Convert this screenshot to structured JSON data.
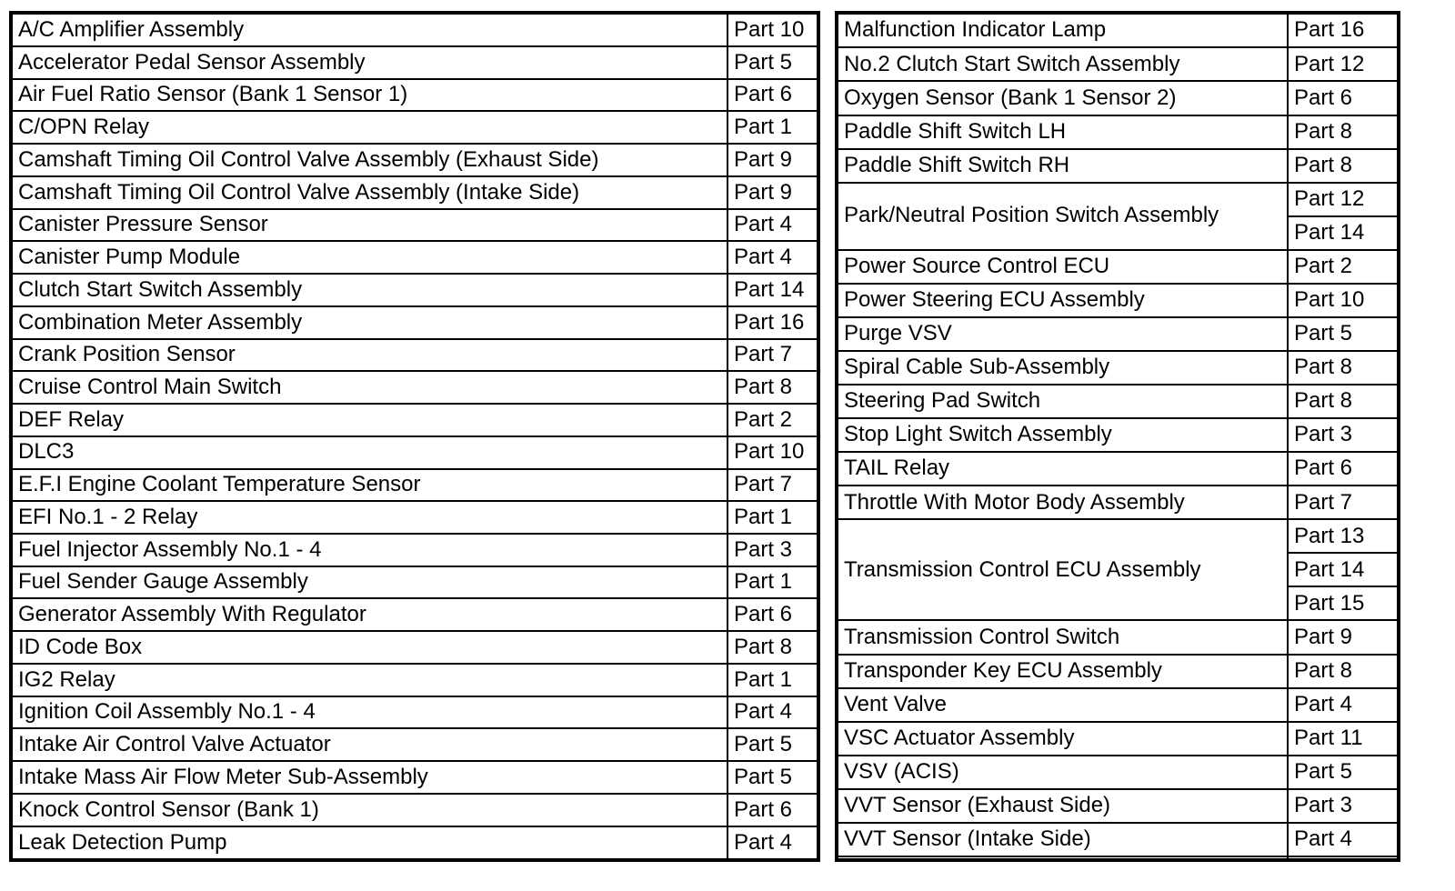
{
  "page": {
    "background_color": "#ffffff",
    "text_color": "#000000",
    "border_color": "#000000"
  },
  "tables": [
    {
      "name": "left",
      "columns": [
        "component",
        "part"
      ],
      "rows": [
        {
          "label": "A/C Amplifier Assembly",
          "parts": [
            "Part 10"
          ]
        },
        {
          "label": "Accelerator Pedal Sensor Assembly",
          "parts": [
            "Part 5"
          ]
        },
        {
          "label": "Air Fuel Ratio Sensor (Bank 1 Sensor 1)",
          "parts": [
            "Part 6"
          ]
        },
        {
          "label": "C/OPN Relay",
          "parts": [
            "Part 1"
          ]
        },
        {
          "label": "Camshaft Timing Oil Control Valve Assembly (Exhaust Side)",
          "parts": [
            "Part 9"
          ]
        },
        {
          "label": "Camshaft Timing Oil Control Valve Assembly (Intake Side)",
          "parts": [
            "Part 9"
          ]
        },
        {
          "label": "Canister Pressure Sensor",
          "parts": [
            "Part 4"
          ]
        },
        {
          "label": "Canister Pump Module",
          "parts": [
            "Part 4"
          ]
        },
        {
          "label": "Clutch Start Switch Assembly",
          "parts": [
            "Part 14"
          ]
        },
        {
          "label": "Combination Meter Assembly",
          "parts": [
            "Part 16"
          ]
        },
        {
          "label": "Crank Position Sensor",
          "parts": [
            "Part 7"
          ]
        },
        {
          "label": "Cruise Control Main Switch",
          "parts": [
            "Part 8"
          ]
        },
        {
          "label": "DEF Relay",
          "parts": [
            "Part 2"
          ]
        },
        {
          "label": "DLC3",
          "parts": [
            "Part 10"
          ]
        },
        {
          "label": "E.F.I Engine Coolant Temperature Sensor",
          "parts": [
            "Part 7"
          ]
        },
        {
          "label": "EFI No.1 - 2 Relay",
          "parts": [
            "Part 1"
          ]
        },
        {
          "label": "Fuel Injector Assembly No.1 - 4",
          "parts": [
            "Part 3"
          ]
        },
        {
          "label": "Fuel Sender Gauge Assembly",
          "parts": [
            "Part 1"
          ]
        },
        {
          "label": "Generator Assembly With Regulator",
          "parts": [
            "Part 6"
          ]
        },
        {
          "label": "ID Code Box",
          "parts": [
            "Part 8"
          ]
        },
        {
          "label": "IG2 Relay",
          "parts": [
            "Part 1"
          ]
        },
        {
          "label": "Ignition Coil Assembly No.1 - 4",
          "parts": [
            "Part 4"
          ]
        },
        {
          "label": "Intake Air Control Valve Actuator",
          "parts": [
            "Part 5"
          ]
        },
        {
          "label": "Intake Mass Air Flow Meter Sub-Assembly",
          "parts": [
            "Part 5"
          ]
        },
        {
          "label": "Knock Control Sensor (Bank 1)",
          "parts": [
            "Part 6"
          ]
        },
        {
          "label": "Leak Detection Pump",
          "parts": [
            "Part 4"
          ]
        }
      ]
    },
    {
      "name": "right",
      "columns": [
        "component",
        "part"
      ],
      "rows": [
        {
          "label": "Malfunction Indicator Lamp",
          "parts": [
            "Part 16"
          ]
        },
        {
          "label": "No.2 Clutch Start Switch Assembly",
          "parts": [
            "Part 12"
          ]
        },
        {
          "label": "Oxygen Sensor (Bank 1 Sensor 2)",
          "parts": [
            "Part 6"
          ]
        },
        {
          "label": "Paddle Shift Switch LH",
          "parts": [
            "Part 8"
          ]
        },
        {
          "label": "Paddle Shift Switch RH",
          "parts": [
            "Part 8"
          ]
        },
        {
          "label": "Park/Neutral Position Switch Assembly",
          "parts": [
            "Part 12",
            "Part 14"
          ]
        },
        {
          "label": "Power Source Control ECU",
          "parts": [
            "Part 2"
          ]
        },
        {
          "label": "Power Steering ECU Assembly",
          "parts": [
            "Part 10"
          ]
        },
        {
          "label": "Purge VSV",
          "parts": [
            "Part 5"
          ]
        },
        {
          "label": "Spiral Cable Sub-Assembly",
          "parts": [
            "Part 8"
          ]
        },
        {
          "label": "Steering Pad Switch",
          "parts": [
            "Part 8"
          ]
        },
        {
          "label": "Stop Light Switch Assembly",
          "parts": [
            "Part 3"
          ]
        },
        {
          "label": "TAIL Relay",
          "parts": [
            "Part 6"
          ]
        },
        {
          "label": "Throttle With Motor Body Assembly",
          "parts": [
            "Part 7"
          ]
        },
        {
          "label": "Transmission Control ECU Assembly",
          "parts": [
            "Part 13",
            "Part 14",
            "Part 15"
          ]
        },
        {
          "label": "Transmission Control Switch",
          "parts": [
            "Part 9"
          ]
        },
        {
          "label": "Transponder Key ECU Assembly",
          "parts": [
            "Part 8"
          ]
        },
        {
          "label": "Vent Valve",
          "parts": [
            "Part 4"
          ]
        },
        {
          "label": "VSC Actuator Assembly",
          "parts": [
            "Part 11"
          ]
        },
        {
          "label": "VSV (ACIS)",
          "parts": [
            "Part 5"
          ]
        },
        {
          "label": "VVT Sensor (Exhaust Side)",
          "parts": [
            "Part 3"
          ]
        },
        {
          "label": "VVT Sensor (Intake Side)",
          "parts": [
            "Part 4"
          ]
        },
        {
          "label": "",
          "parts": [
            ""
          ]
        }
      ]
    }
  ]
}
